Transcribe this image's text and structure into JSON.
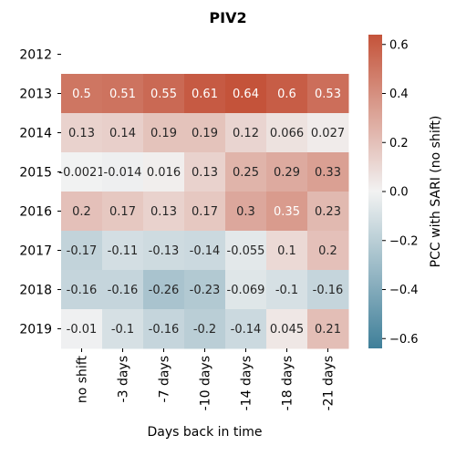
{
  "chart_data": {
    "type": "heatmap",
    "title": "PIV2",
    "xlabel": "Days back in time",
    "ylabel": "",
    "x_categories": [
      "no shift",
      "-3 days",
      "-7 days",
      "-10 days",
      "-14 days",
      "-18 days",
      "-21 days"
    ],
    "y_categories": [
      "2012",
      "2013",
      "2014",
      "2015",
      "2016",
      "2017",
      "2018",
      "2019"
    ],
    "values": [
      [
        null,
        null,
        null,
        null,
        null,
        null,
        null
      ],
      [
        0.5,
        0.51,
        0.55,
        0.61,
        0.64,
        0.6,
        0.53
      ],
      [
        0.13,
        0.14,
        0.19,
        0.19,
        0.12,
        0.066,
        0.027
      ],
      [
        -0.0021,
        -0.014,
        0.016,
        0.13,
        0.25,
        0.29,
        0.33
      ],
      [
        0.2,
        0.17,
        0.13,
        0.17,
        0.3,
        0.35,
        0.23
      ],
      [
        -0.17,
        -0.11,
        -0.13,
        -0.14,
        -0.055,
        0.1,
        0.2
      ],
      [
        -0.16,
        -0.16,
        -0.26,
        -0.23,
        -0.069,
        -0.1,
        -0.16
      ],
      [
        -0.01,
        -0.1,
        -0.16,
        -0.2,
        -0.14,
        0.045,
        0.21
      ]
    ],
    "value_labels": [
      [
        "",
        "",
        "",
        "",
        "",
        "",
        ""
      ],
      [
        "0.5",
        "0.51",
        "0.55",
        "0.61",
        "0.64",
        "0.6",
        "0.53"
      ],
      [
        "0.13",
        "0.14",
        "0.19",
        "0.19",
        "0.12",
        "0.066",
        "0.027"
      ],
      [
        "-0.0021",
        "-0.014",
        "0.016",
        "0.13",
        "0.25",
        "0.29",
        "0.33"
      ],
      [
        "0.2",
        "0.17",
        "0.13",
        "0.17",
        "0.3",
        "0.35",
        "0.23"
      ],
      [
        "-0.17",
        "-0.11",
        "-0.13",
        "-0.14",
        "-0.055",
        "0.1",
        "0.2"
      ],
      [
        "-0.16",
        "-0.16",
        "-0.26",
        "-0.23",
        "-0.069",
        "-0.1",
        "-0.16"
      ],
      [
        "-0.01",
        "-0.1",
        "-0.16",
        "-0.2",
        "-0.14",
        "0.045",
        "0.21"
      ]
    ],
    "colorbar": {
      "label": "PCC with SARI (no shift)",
      "range": [
        -0.64,
        0.64
      ],
      "ticks": [
        -0.6,
        -0.4,
        -0.2,
        0.0,
        0.2,
        0.4,
        0.6
      ],
      "tick_labels": [
        "−0.6",
        "−0.4",
        "−0.2",
        "0.0",
        "0.2",
        "0.4",
        "0.6"
      ]
    },
    "colors": {
      "negative": "#3f7f99",
      "neutral": "#f2f2f2",
      "positive": "#c4533a"
    },
    "grid": false,
    "legend": "colorbar-right"
  }
}
